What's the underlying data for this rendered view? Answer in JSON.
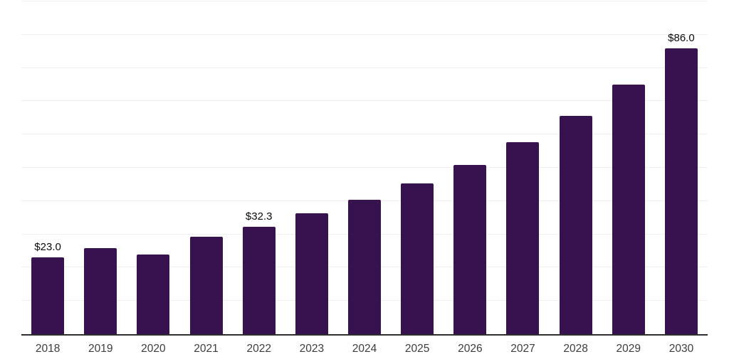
{
  "chart_data": {
    "type": "bar",
    "title": "",
    "xlabel": "",
    "ylabel": "",
    "categories": [
      "2018",
      "2019",
      "2020",
      "2021",
      "2022",
      "2023",
      "2024",
      "2025",
      "2026",
      "2027",
      "2028",
      "2029",
      "2030"
    ],
    "values": [
      23.0,
      25.8,
      23.9,
      29.2,
      32.3,
      36.3,
      40.3,
      45.2,
      50.8,
      57.8,
      65.7,
      75.1,
      86.0
    ],
    "bar_labels": [
      "$23.0",
      "",
      "",
      "",
      "$32.3",
      "",
      "",
      "",
      "",
      "",
      "",
      "",
      "$86.0"
    ],
    "ylim": [
      0,
      100
    ],
    "gridline_step": 10,
    "grid": "horizontal",
    "legend_position": "none",
    "colors": {
      "bar": "#36124E",
      "gridline": "#efefef",
      "axis_line": "#2e2e2e",
      "bar_label": "#0a0a0a",
      "tick_label": "#3d3d3d",
      "background": "#ffffff"
    }
  }
}
